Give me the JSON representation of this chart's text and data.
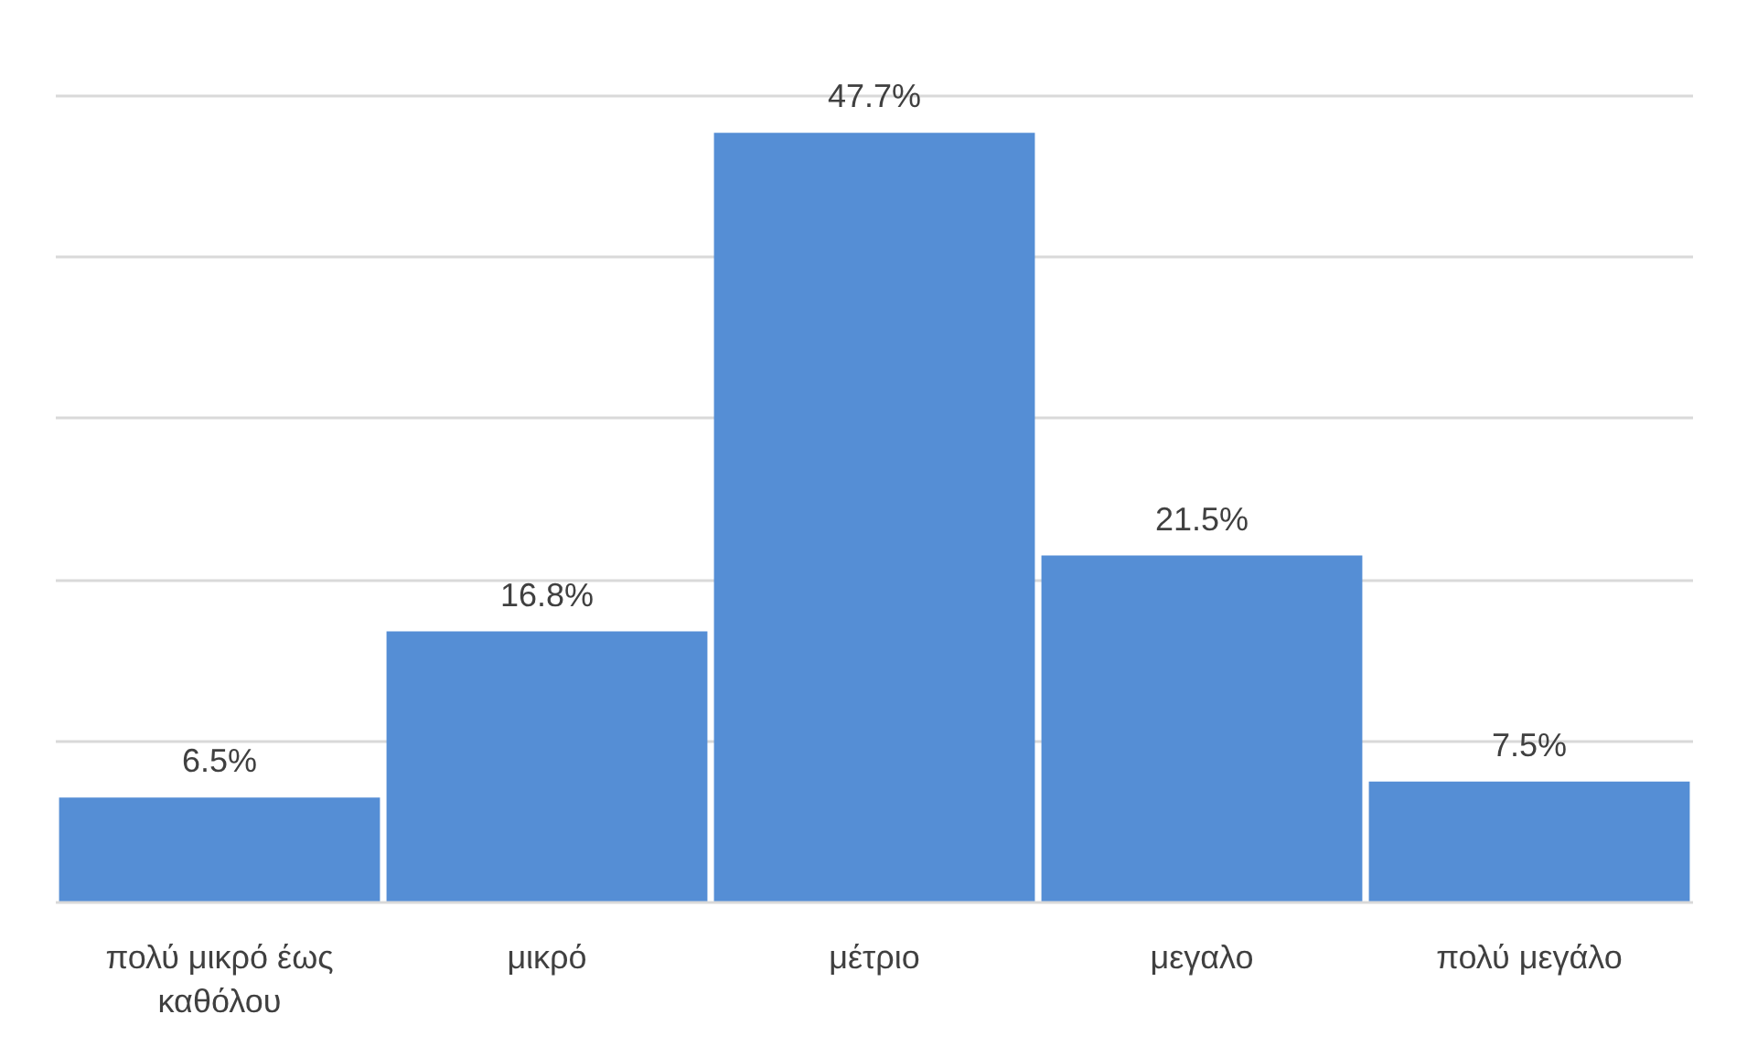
{
  "chart_data": {
    "type": "bar",
    "categories": [
      "πολύ μικρό έως καθόλου",
      "μικρό",
      "μέτριο",
      "μεγαλο",
      "πολύ μεγάλο"
    ],
    "values": [
      6.5,
      16.8,
      47.7,
      21.5,
      7.5
    ],
    "value_labels": [
      "6.5%",
      "16.8%",
      "47.7%",
      "21.5%",
      "7.5%"
    ],
    "color": "#558ed5",
    "grid": "y",
    "tick_labels": "x"
  }
}
